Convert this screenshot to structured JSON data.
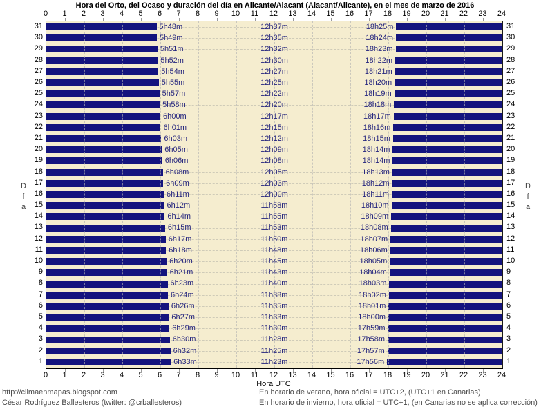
{
  "title": "Hora del Orto, del Ocaso y duración del día en Alicante/Alacant (Alacant/Alicante), en el mes de marzo de 2016",
  "axis": {
    "x_label": "Hora UTC",
    "y_label": "Día",
    "x_min": 0,
    "x_max": 24,
    "x_ticks": [
      0,
      1,
      2,
      3,
      4,
      5,
      6,
      7,
      8,
      9,
      10,
      11,
      12,
      13,
      14,
      15,
      16,
      17,
      18,
      19,
      20,
      21,
      22,
      23,
      24
    ]
  },
  "colors": {
    "night_bar": "#14147E",
    "daylight_background": "#F5EDCF",
    "time_label": "#26267E"
  },
  "footer": {
    "left_line1": "http://climaenmapas.blogspot.com",
    "left_line2": "César Rodríguez Ballesteros (twitter: @crballesteros)",
    "right_line1": "En horario de verano, hora oficial = UTC+2, (UTC+1 en Canarias)",
    "right_line2": "En horario de invierno, hora oficial = UTC+1, (en Canarias no se aplica corrección)"
  },
  "chart_data": {
    "type": "bar",
    "orientation": "horizontal",
    "description": "Dark bars = night (00:00→orto and ocaso→24:00); cream gap = daylight",
    "title": "Hora del Orto, del Ocaso y duración del día en Alicante/Alacant (Alacant/Alicante), en el mes de marzo de 2016",
    "xlabel": "Hora UTC",
    "ylabel": "Día",
    "xlim": [
      0,
      24
    ],
    "grid": true,
    "rows": [
      {
        "day": 31,
        "orto": "5h48m",
        "duracion": "12h37m",
        "ocaso": "18h25m"
      },
      {
        "day": 30,
        "orto": "5h49m",
        "duracion": "12h35m",
        "ocaso": "18h24m"
      },
      {
        "day": 29,
        "orto": "5h51m",
        "duracion": "12h32m",
        "ocaso": "18h23m"
      },
      {
        "day": 28,
        "orto": "5h52m",
        "duracion": "12h30m",
        "ocaso": "18h22m"
      },
      {
        "day": 27,
        "orto": "5h54m",
        "duracion": "12h27m",
        "ocaso": "18h21m"
      },
      {
        "day": 26,
        "orto": "5h55m",
        "duracion": "12h25m",
        "ocaso": "18h20m"
      },
      {
        "day": 25,
        "orto": "5h57m",
        "duracion": "12h22m",
        "ocaso": "18h19m"
      },
      {
        "day": 24,
        "orto": "5h58m",
        "duracion": "12h20m",
        "ocaso": "18h18m"
      },
      {
        "day": 23,
        "orto": "6h00m",
        "duracion": "12h17m",
        "ocaso": "18h17m"
      },
      {
        "day": 22,
        "orto": "6h01m",
        "duracion": "12h15m",
        "ocaso": "18h16m"
      },
      {
        "day": 21,
        "orto": "6h03m",
        "duracion": "12h12m",
        "ocaso": "18h15m"
      },
      {
        "day": 20,
        "orto": "6h05m",
        "duracion": "12h09m",
        "ocaso": "18h14m"
      },
      {
        "day": 19,
        "orto": "6h06m",
        "duracion": "12h08m",
        "ocaso": "18h14m"
      },
      {
        "day": 18,
        "orto": "6h08m",
        "duracion": "12h05m",
        "ocaso": "18h13m"
      },
      {
        "day": 17,
        "orto": "6h09m",
        "duracion": "12h03m",
        "ocaso": "18h12m"
      },
      {
        "day": 16,
        "orto": "6h11m",
        "duracion": "12h00m",
        "ocaso": "18h11m"
      },
      {
        "day": 15,
        "orto": "6h12m",
        "duracion": "11h58m",
        "ocaso": "18h10m"
      },
      {
        "day": 14,
        "orto": "6h14m",
        "duracion": "11h55m",
        "ocaso": "18h09m"
      },
      {
        "day": 13,
        "orto": "6h15m",
        "duracion": "11h53m",
        "ocaso": "18h08m"
      },
      {
        "day": 12,
        "orto": "6h17m",
        "duracion": "11h50m",
        "ocaso": "18h07m"
      },
      {
        "day": 11,
        "orto": "6h18m",
        "duracion": "11h48m",
        "ocaso": "18h06m"
      },
      {
        "day": 10,
        "orto": "6h20m",
        "duracion": "11h45m",
        "ocaso": "18h05m"
      },
      {
        "day": 9,
        "orto": "6h21m",
        "duracion": "11h43m",
        "ocaso": "18h04m"
      },
      {
        "day": 8,
        "orto": "6h23m",
        "duracion": "11h40m",
        "ocaso": "18h03m"
      },
      {
        "day": 7,
        "orto": "6h24m",
        "duracion": "11h38m",
        "ocaso": "18h02m"
      },
      {
        "day": 6,
        "orto": "6h26m",
        "duracion": "11h35m",
        "ocaso": "18h01m"
      },
      {
        "day": 5,
        "orto": "6h27m",
        "duracion": "11h33m",
        "ocaso": "18h00m"
      },
      {
        "day": 4,
        "orto": "6h29m",
        "duracion": "11h30m",
        "ocaso": "17h59m"
      },
      {
        "day": 3,
        "orto": "6h30m",
        "duracion": "11h28m",
        "ocaso": "17h58m"
      },
      {
        "day": 2,
        "orto": "6h32m",
        "duracion": "11h25m",
        "ocaso": "17h57m"
      },
      {
        "day": 1,
        "orto": "6h33m",
        "duracion": "11h23m",
        "ocaso": "17h56m"
      }
    ]
  }
}
